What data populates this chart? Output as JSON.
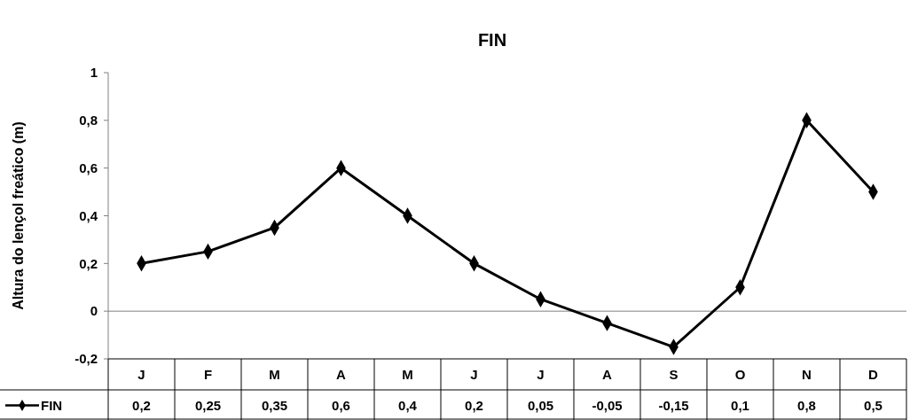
{
  "chart_data": {
    "type": "line",
    "title": "FIN",
    "ylabel": "Altura do lençol freático (m)",
    "categories": [
      "J",
      "F",
      "M",
      "A",
      "M",
      "J",
      "J",
      "A",
      "S",
      "O",
      "N",
      "D"
    ],
    "series": [
      {
        "name": "FIN",
        "color": "#000000",
        "values": [
          0.2,
          0.25,
          0.35,
          0.6,
          0.4,
          0.2,
          0.05,
          -0.05,
          -0.15,
          0.1,
          0.8,
          0.5
        ],
        "value_labels": [
          "0,2",
          "0,25",
          "0,35",
          "0,6",
          "0,4",
          "0,2",
          "0,05",
          "-0,05",
          "-0,15",
          "0,1",
          "0,8",
          "0,5"
        ]
      }
    ],
    "ylim": [
      -0.2,
      1
    ],
    "yticks": [
      {
        "value": -0.2,
        "label": "-0,2"
      },
      {
        "value": 0,
        "label": "0"
      },
      {
        "value": 0.2,
        "label": "0,2"
      },
      {
        "value": 0.4,
        "label": "0,4"
      },
      {
        "value": 0.6,
        "label": "0,6"
      },
      {
        "value": 0.8,
        "label": "0,8"
      },
      {
        "value": 1,
        "label": "1"
      }
    ],
    "legend": "bottom left",
    "marker": "diamond",
    "line_style": "solid"
  }
}
